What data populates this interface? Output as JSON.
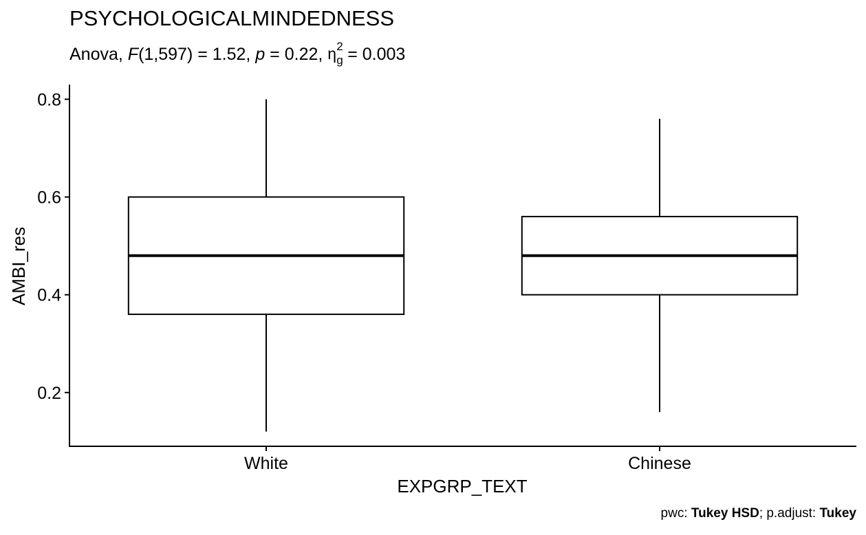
{
  "chart_data": {
    "type": "box",
    "title": "PSYCHOLOGICALMINDEDNESS",
    "subtitle": {
      "prefix": "Anova, ",
      "stat_name": "F",
      "stat_df": "(1,597) = 1.52, ",
      "p_name": "p",
      "p_value": " = 0.22, ",
      "effect_symbol": "η",
      "effect_superscript": "2",
      "effect_subscript": "g",
      "effect_value": " = 0.003"
    },
    "xlabel": "EXPGRP_TEXT",
    "ylabel": "AMBI_res",
    "ylim": [
      0.09,
      0.83
    ],
    "yticks": [
      0.2,
      0.4,
      0.6,
      0.8
    ],
    "ytick_labels": [
      "0.2",
      "0.4",
      "0.6",
      "0.8"
    ],
    "categories": [
      "White",
      "Chinese"
    ],
    "boxes": [
      {
        "category": "White",
        "min": 0.12,
        "q1": 0.36,
        "median": 0.48,
        "q3": 0.6,
        "max": 0.8
      },
      {
        "category": "Chinese",
        "min": 0.16,
        "q1": 0.4,
        "median": 0.48,
        "q3": 0.56,
        "max": 0.76
      }
    ],
    "grid": false,
    "caption": {
      "pwc_prefix": "pwc: ",
      "pwc_method": "Tukey HSD",
      "adjust_prefix": "; p.adjust: ",
      "adjust_method": "Tukey"
    }
  }
}
